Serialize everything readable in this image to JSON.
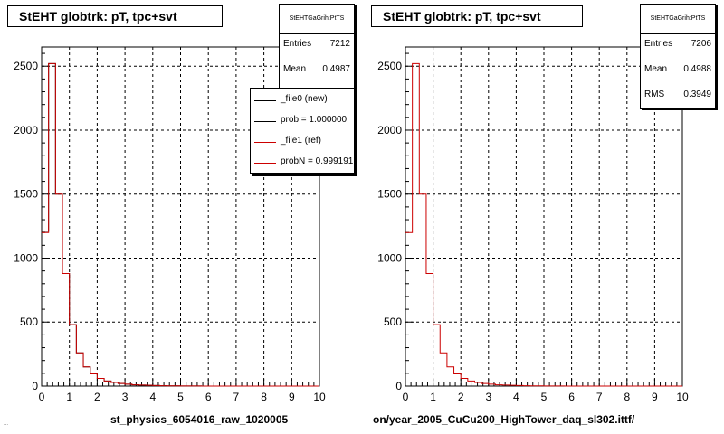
{
  "page": {
    "footer_left": "st_physics_6054016_raw_1020005",
    "footer_right": "on/year_2005_CuCu200_HighTower_daq_sl302.ittf/",
    "footnote": "..."
  },
  "colors": {
    "new": "#000000",
    "ref": "#cc0000",
    "grid": "#000000"
  },
  "legend": {
    "entries": [
      {
        "label": "_file0 (new)",
        "color": "#000000"
      },
      {
        "label": "prob = 1.000000",
        "color": "#000000"
      },
      {
        "label": "_file1 (ref)",
        "color": "#cc0000"
      },
      {
        "label": "probN = 0.999191",
        "color": "#cc0000"
      }
    ]
  },
  "chart_data": [
    {
      "type": "histogram",
      "title": "StEHT globtrk: pT, tpc+svt",
      "xlim": [
        0,
        10
      ],
      "ylim": [
        0,
        2650
      ],
      "xticks": [
        0,
        1,
        2,
        3,
        4,
        5,
        6,
        7,
        8,
        9,
        10
      ],
      "yticks": [
        0,
        500,
        1000,
        1500,
        2000,
        2500
      ],
      "grid": true,
      "bin_width": 0.25,
      "stats": {
        "name": "StEHTGaGrih:PtTS",
        "rows": [
          {
            "label": "Entries",
            "value": "7212"
          },
          {
            "label": "Mean",
            "value": "0.4987"
          }
        ]
      },
      "series": [
        {
          "name": "_file0 (new)",
          "color": "#000000",
          "values": [
            1210,
            2520,
            1500,
            880,
            480,
            260,
            150,
            95,
            60,
            40,
            28,
            20,
            15,
            10,
            8,
            6,
            4,
            3,
            2,
            2,
            1,
            1,
            1,
            0,
            0,
            0,
            0,
            0,
            0,
            0,
            0,
            0,
            0,
            0,
            0,
            0,
            0,
            0,
            0,
            0
          ]
        },
        {
          "name": "_file1 (ref)",
          "color": "#cc0000",
          "values": [
            1200,
            2520,
            1500,
            880,
            480,
            260,
            150,
            95,
            60,
            40,
            28,
            20,
            15,
            10,
            8,
            6,
            4,
            3,
            2,
            2,
            1,
            1,
            1,
            0,
            0,
            0,
            0,
            0,
            0,
            0,
            0,
            0,
            0,
            0,
            0,
            0,
            0,
            0,
            0,
            0
          ]
        }
      ]
    },
    {
      "type": "histogram",
      "title": "StEHT globtrk: pT, tpc+svt",
      "xlim": [
        0,
        10
      ],
      "ylim": [
        0,
        2650
      ],
      "xticks": [
        0,
        1,
        2,
        3,
        4,
        5,
        6,
        7,
        8,
        9,
        10
      ],
      "yticks": [
        0,
        500,
        1000,
        1500,
        2000,
        2500
      ],
      "grid": true,
      "bin_width": 0.25,
      "stats": {
        "name": "StEHTGaGrih:PtTS",
        "rows": [
          {
            "label": "Entries",
            "value": "7206"
          },
          {
            "label": "Mean",
            "value": "0.4988"
          },
          {
            "label": "RMS",
            "value": "0.3949"
          }
        ]
      },
      "series": [
        {
          "name": "_file1 (ref)",
          "color": "#cc0000",
          "values": [
            1200,
            2520,
            1500,
            880,
            480,
            260,
            150,
            95,
            60,
            40,
            28,
            20,
            15,
            10,
            8,
            6,
            4,
            3,
            2,
            2,
            1,
            1,
            1,
            0,
            0,
            0,
            0,
            0,
            0,
            0,
            0,
            0,
            0,
            0,
            0,
            0,
            0,
            0,
            0,
            0
          ]
        }
      ]
    }
  ]
}
